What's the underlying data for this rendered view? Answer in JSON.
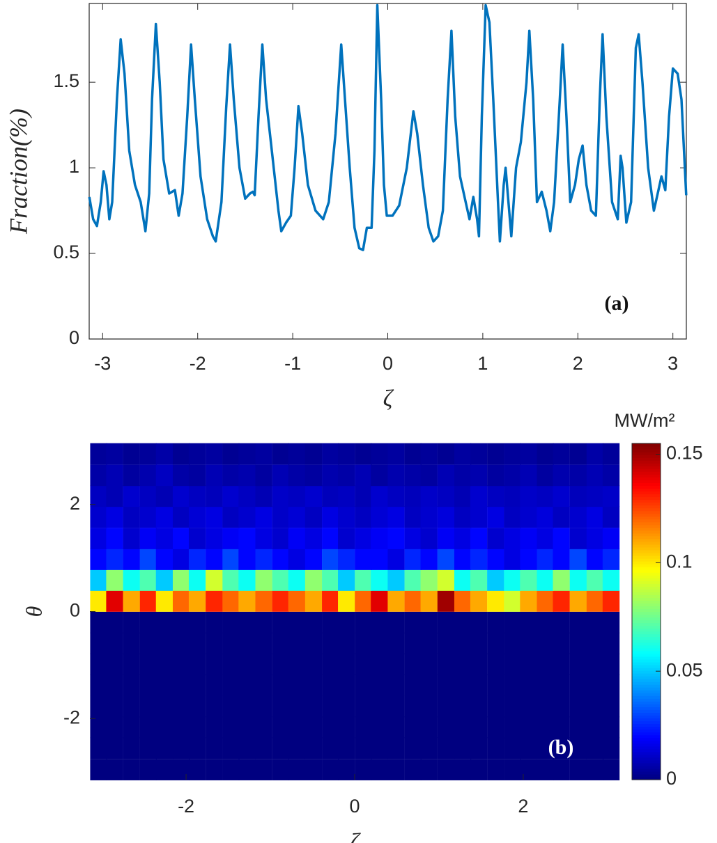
{
  "chart_data": [
    {
      "type": "line",
      "annotation": "(a)",
      "y_label": "Fraction(%)",
      "x_label": "ζ",
      "color": "#0072bd",
      "xlim": [
        -3.1416,
        3.1416
      ],
      "ylim": [
        0,
        1.96
      ],
      "xticks": [
        -3,
        -2,
        -1,
        0,
        1,
        2,
        3
      ],
      "yticks": [
        0,
        0.5,
        1,
        1.5
      ],
      "x": [
        -3.14,
        -3.1,
        -3.06,
        -3.02,
        -2.99,
        -2.96,
        -2.93,
        -2.9,
        -2.85,
        -2.81,
        -2.77,
        -2.72,
        -2.66,
        -2.6,
        -2.55,
        -2.51,
        -2.48,
        -2.44,
        -2.4,
        -2.36,
        -2.3,
        -2.24,
        -2.2,
        -2.16,
        -2.11,
        -2.07,
        -2.03,
        -1.97,
        -1.9,
        -1.84,
        -1.81,
        -1.75,
        -1.7,
        -1.66,
        -1.62,
        -1.56,
        -1.5,
        -1.45,
        -1.42,
        -1.4,
        -1.36,
        -1.32,
        -1.28,
        -1.22,
        -1.15,
        -1.12,
        -1.07,
        -1.02,
        -0.98,
        -0.94,
        -0.9,
        -0.84,
        -0.76,
        -0.68,
        -0.62,
        -0.55,
        -0.49,
        -0.45,
        -0.4,
        -0.35,
        -0.3,
        -0.26,
        -0.22,
        -0.17,
        -0.14,
        -0.11,
        -0.07,
        -0.04,
        -0.01,
        0.05,
        0.12,
        0.2,
        0.27,
        0.31,
        0.37,
        0.43,
        0.48,
        0.53,
        0.58,
        0.63,
        0.67,
        0.71,
        0.76,
        0.82,
        0.86,
        0.9,
        0.94,
        0.96,
        0.99,
        1.03,
        1.07,
        1.11,
        1.16,
        1.18,
        1.22,
        1.24,
        1.27,
        1.3,
        1.35,
        1.4,
        1.46,
        1.49,
        1.53,
        1.57,
        1.62,
        1.67,
        1.71,
        1.75,
        1.81,
        1.84,
        1.88,
        1.92,
        1.97,
        2.01,
        2.05,
        2.09,
        2.14,
        2.19,
        2.23,
        2.26,
        2.3,
        2.36,
        2.42,
        2.45,
        2.47,
        2.51,
        2.56,
        2.61,
        2.64,
        2.68,
        2.74,
        2.8,
        2.84,
        2.88,
        2.92,
        2.96,
        3.0,
        3.05,
        3.09,
        3.14
      ],
      "values": [
        0.83,
        0.7,
        0.66,
        0.8,
        0.98,
        0.9,
        0.7,
        0.8,
        1.4,
        1.75,
        1.55,
        1.1,
        0.9,
        0.8,
        0.63,
        0.85,
        1.4,
        1.84,
        1.5,
        1.05,
        0.85,
        0.87,
        0.72,
        0.85,
        1.3,
        1.72,
        1.4,
        0.95,
        0.7,
        0.6,
        0.57,
        0.8,
        1.35,
        1.72,
        1.4,
        1.0,
        0.82,
        0.85,
        0.86,
        0.84,
        1.3,
        1.72,
        1.4,
        1.1,
        0.75,
        0.63,
        0.68,
        0.72,
        1.0,
        1.36,
        1.2,
        0.9,
        0.75,
        0.7,
        0.8,
        1.2,
        1.72,
        1.4,
        1.0,
        0.65,
        0.53,
        0.52,
        0.65,
        0.65,
        1.1,
        1.95,
        1.4,
        0.9,
        0.72,
        0.72,
        0.78,
        1.0,
        1.33,
        1.2,
        0.9,
        0.65,
        0.57,
        0.6,
        0.75,
        1.4,
        1.8,
        1.3,
        0.95,
        0.8,
        0.7,
        0.83,
        0.7,
        0.6,
        1.3,
        1.95,
        1.85,
        1.4,
        0.8,
        0.57,
        0.9,
        1.0,
        0.8,
        0.6,
        1.0,
        1.15,
        1.5,
        1.8,
        1.4,
        0.8,
        0.86,
        0.75,
        0.63,
        0.8,
        1.4,
        1.72,
        1.3,
        0.8,
        0.9,
        1.05,
        1.13,
        0.9,
        0.75,
        0.72,
        1.4,
        1.78,
        1.3,
        0.8,
        0.7,
        1.07,
        1.0,
        0.68,
        0.8,
        1.7,
        1.78,
        1.5,
        1.0,
        0.75,
        0.85,
        0.95,
        0.87,
        1.3,
        1.58,
        1.55,
        1.4,
        0.84
      ]
    },
    {
      "type": "heatmap",
      "annotation": "(b)",
      "y_label": "θ",
      "x_label": "ζ",
      "colorbar_label": "MW/m²",
      "colormap": "jet",
      "xlim": [
        -3.1416,
        3.1416
      ],
      "ylim": [
        -3.1416,
        3.1416
      ],
      "clim": [
        0,
        0.155
      ],
      "xticks": [
        -2,
        0,
        2
      ],
      "yticks": [
        -2,
        0,
        2
      ],
      "cticks": [
        0,
        0.05,
        0.1,
        0.15
      ],
      "x": [
        -3.04,
        -2.85,
        -2.65,
        -2.45,
        -2.26,
        -2.06,
        -1.87,
        -1.67,
        -1.47,
        -1.28,
        -1.08,
        -0.88,
        -0.69,
        -0.49,
        -0.29,
        -0.1,
        0.1,
        0.29,
        0.49,
        0.69,
        0.88,
        1.08,
        1.28,
        1.47,
        1.67,
        1.87,
        2.06,
        2.26,
        2.45,
        2.65,
        2.85,
        3.04
      ],
      "y": [
        -2.95,
        -2.55,
        -2.16,
        -1.77,
        -1.37,
        -0.98,
        -0.59,
        -0.2,
        0.2,
        0.59,
        0.98,
        1.37,
        1.77,
        2.16,
        2.55,
        2.95
      ],
      "z": [
        [
          0,
          0,
          0,
          0,
          0,
          0,
          0,
          0,
          0,
          0,
          0,
          0,
          0,
          0,
          0,
          0,
          0,
          0,
          0,
          0,
          0,
          0,
          0,
          0,
          0,
          0,
          0,
          0,
          0,
          0,
          0,
          0
        ],
        [
          0,
          0,
          0,
          0,
          0,
          0,
          0,
          0,
          0,
          0,
          0,
          0,
          0,
          0,
          0,
          0,
          0,
          0,
          0,
          0,
          0,
          0,
          0,
          0,
          0,
          0,
          0,
          0,
          0,
          0,
          0,
          0
        ],
        [
          0,
          0,
          0,
          0,
          0,
          0,
          0,
          0,
          0,
          0,
          0,
          0,
          0,
          0,
          0,
          0,
          0,
          0,
          0,
          0,
          0,
          0,
          0,
          0,
          0,
          0,
          0,
          0,
          0,
          0,
          0,
          0
        ],
        [
          0,
          0,
          0,
          0,
          0,
          0,
          0,
          0,
          0,
          0,
          0,
          0,
          0,
          0,
          0,
          0,
          0,
          0,
          0,
          0,
          0,
          0,
          0,
          0,
          0,
          0,
          0,
          0,
          0,
          0,
          0,
          0
        ],
        [
          0,
          0,
          0,
          0,
          0,
          0,
          0,
          0,
          0,
          0,
          0,
          0,
          0,
          0,
          0,
          0,
          0,
          0,
          0,
          0,
          0,
          0,
          0,
          0,
          0,
          0,
          0,
          0,
          0,
          0,
          0,
          0
        ],
        [
          0,
          0,
          0,
          0,
          0,
          0,
          0,
          0,
          0,
          0,
          0,
          0,
          0,
          0,
          0,
          0,
          0,
          0,
          0,
          0,
          0,
          0,
          0,
          0,
          0,
          0,
          0,
          0,
          0,
          0,
          0,
          0
        ],
        [
          0,
          0,
          0,
          0,
          0,
          0,
          0,
          0,
          0,
          0,
          0,
          0,
          0,
          0,
          0,
          0,
          0,
          0,
          0,
          0,
          0,
          0,
          0,
          0,
          0,
          0,
          0,
          0,
          0,
          0,
          0,
          0
        ],
        [
          0,
          0,
          0,
          0,
          0,
          0,
          0,
          0,
          0,
          0,
          0,
          0,
          0,
          0,
          0,
          0,
          0,
          0,
          0,
          0,
          0,
          0,
          0,
          0,
          0,
          0,
          0,
          0,
          0,
          0,
          0,
          0
        ],
        [
          0.1,
          0.14,
          0.11,
          0.13,
          0.1,
          0.12,
          0.11,
          0.13,
          0.12,
          0.11,
          0.12,
          0.13,
          0.12,
          0.11,
          0.13,
          0.1,
          0.12,
          0.14,
          0.11,
          0.12,
          0.11,
          0.15,
          0.12,
          0.11,
          0.1,
          0.09,
          0.11,
          0.12,
          0.13,
          0.11,
          0.12,
          0.13
        ],
        [
          0.05,
          0.08,
          0.06,
          0.07,
          0.05,
          0.08,
          0.06,
          0.09,
          0.07,
          0.06,
          0.08,
          0.07,
          0.06,
          0.08,
          0.07,
          0.05,
          0.07,
          0.06,
          0.05,
          0.07,
          0.08,
          0.09,
          0.06,
          0.07,
          0.05,
          0.06,
          0.07,
          0.06,
          0.08,
          0.06,
          0.07,
          0.06
        ],
        [
          0.02,
          0.025,
          0.02,
          0.03,
          0.02,
          0.015,
          0.025,
          0.02,
          0.03,
          0.02,
          0.025,
          0.02,
          0.015,
          0.02,
          0.03,
          0.025,
          0.02,
          0.02,
          0.015,
          0.025,
          0.02,
          0.03,
          0.02,
          0.025,
          0.02,
          0.015,
          0.02,
          0.025,
          0.02,
          0.03,
          0.02,
          0.025
        ],
        [
          0.015,
          0.02,
          0.012,
          0.018,
          0.015,
          0.02,
          0.012,
          0.015,
          0.018,
          0.02,
          0.015,
          0.012,
          0.018,
          0.015,
          0.02,
          0.012,
          0.015,
          0.018,
          0.02,
          0.015,
          0.012,
          0.018,
          0.015,
          0.02,
          0.012,
          0.015,
          0.018,
          0.015,
          0.02,
          0.012,
          0.015,
          0.018
        ],
        [
          0.012,
          0.015,
          0.01,
          0.012,
          0.015,
          0.01,
          0.013,
          0.015,
          0.01,
          0.012,
          0.015,
          0.011,
          0.013,
          0.01,
          0.015,
          0.012,
          0.01,
          0.013,
          0.015,
          0.01,
          0.012,
          0.014,
          0.01,
          0.012,
          0.015,
          0.01,
          0.012,
          0.014,
          0.01,
          0.012,
          0.015,
          0.01
        ],
        [
          0.01,
          0.008,
          0.012,
          0.01,
          0.008,
          0.012,
          0.01,
          0.009,
          0.012,
          0.01,
          0.008,
          0.011,
          0.01,
          0.012,
          0.009,
          0.01,
          0.008,
          0.012,
          0.01,
          0.009,
          0.011,
          0.01,
          0.008,
          0.012,
          0.01,
          0.009,
          0.011,
          0.01,
          0.012,
          0.009,
          0.01,
          0.011
        ],
        [
          0.006,
          0.008,
          0.005,
          0.007,
          0.01,
          0.006,
          0.005,
          0.008,
          0.006,
          0.007,
          0.005,
          0.008,
          0.006,
          0.005,
          0.007,
          0.006,
          0.008,
          0.005,
          0.007,
          0.006,
          0.005,
          0.008,
          0.006,
          0.007,
          0.005,
          0.006,
          0.008,
          0.005,
          0.007,
          0.006,
          0.008,
          0.006
        ],
        [
          0.004,
          0.005,
          0.003,
          0.004,
          0.006,
          0.003,
          0.004,
          0.005,
          0.003,
          0.004,
          0.005,
          0.003,
          0.004,
          0.003,
          0.005,
          0.004,
          0.003,
          0.004,
          0.005,
          0.003,
          0.004,
          0.003,
          0.005,
          0.004,
          0.003,
          0.004,
          0.005,
          0.003,
          0.004,
          0.003,
          0.006,
          0.004
        ]
      ]
    }
  ]
}
